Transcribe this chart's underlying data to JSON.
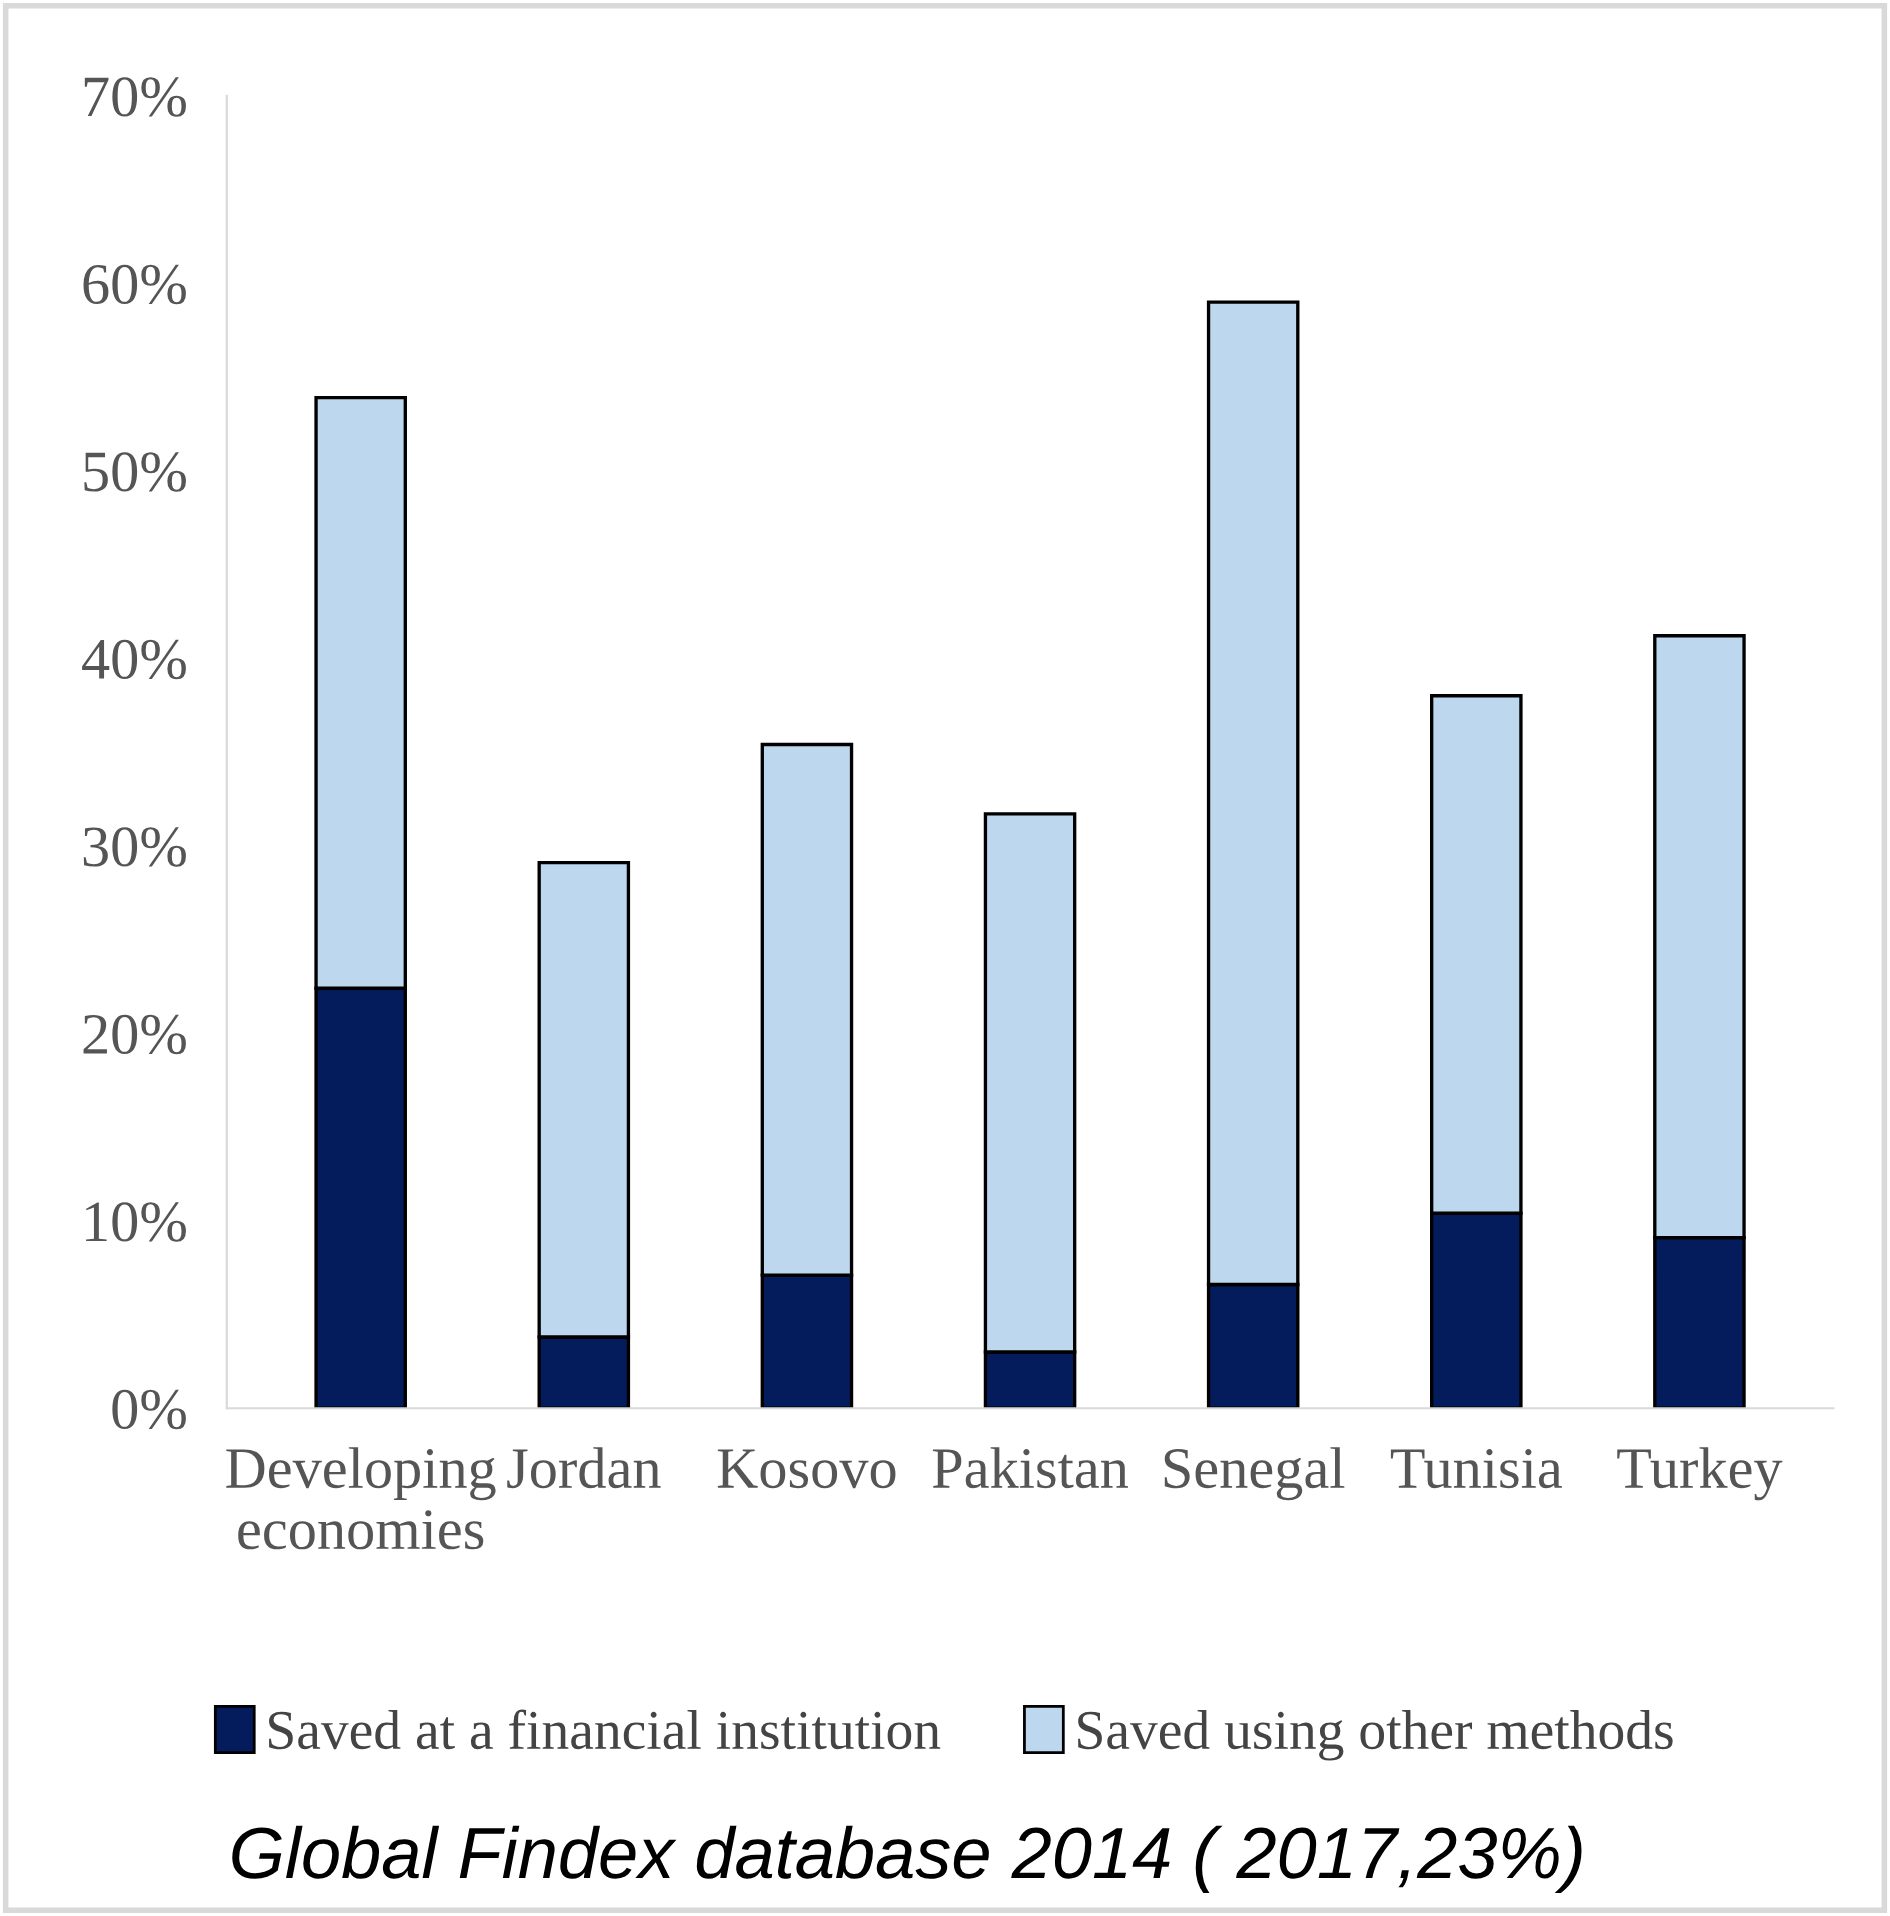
{
  "chart_data": {
    "type": "bar",
    "stacked": true,
    "categories": [
      "Developing\neconomies",
      "Jordan",
      "Kosovo",
      "Pakistan",
      "Senegal",
      "Tunisia",
      "Turkey"
    ],
    "series": [
      {
        "name": "Saved at a financial institution",
        "color": "#041c5c",
        "values": [
          22.4,
          3.8,
          7.1,
          3.0,
          6.6,
          10.4,
          9.1
        ]
      },
      {
        "name": "Saved using other methods",
        "color": "#bdd7ee",
        "values": [
          31.5,
          25.3,
          28.3,
          28.7,
          52.4,
          27.6,
          32.1
        ]
      }
    ],
    "ylim": [
      0,
      70
    ],
    "yticks": [
      {
        "value": 0,
        "label": "0%"
      },
      {
        "value": 10,
        "label": "10%"
      },
      {
        "value": 20,
        "label": "20%"
      },
      {
        "value": 30,
        "label": "30%"
      },
      {
        "value": 40,
        "label": "40%"
      },
      {
        "value": 50,
        "label": "50%"
      },
      {
        "value": 60,
        "label": "60%"
      },
      {
        "value": 70,
        "label": "70%"
      }
    ],
    "grid": false,
    "legend": "bottom",
    "annotations": [
      "Global Findex database 2014 ( 2017,23%)"
    ]
  }
}
